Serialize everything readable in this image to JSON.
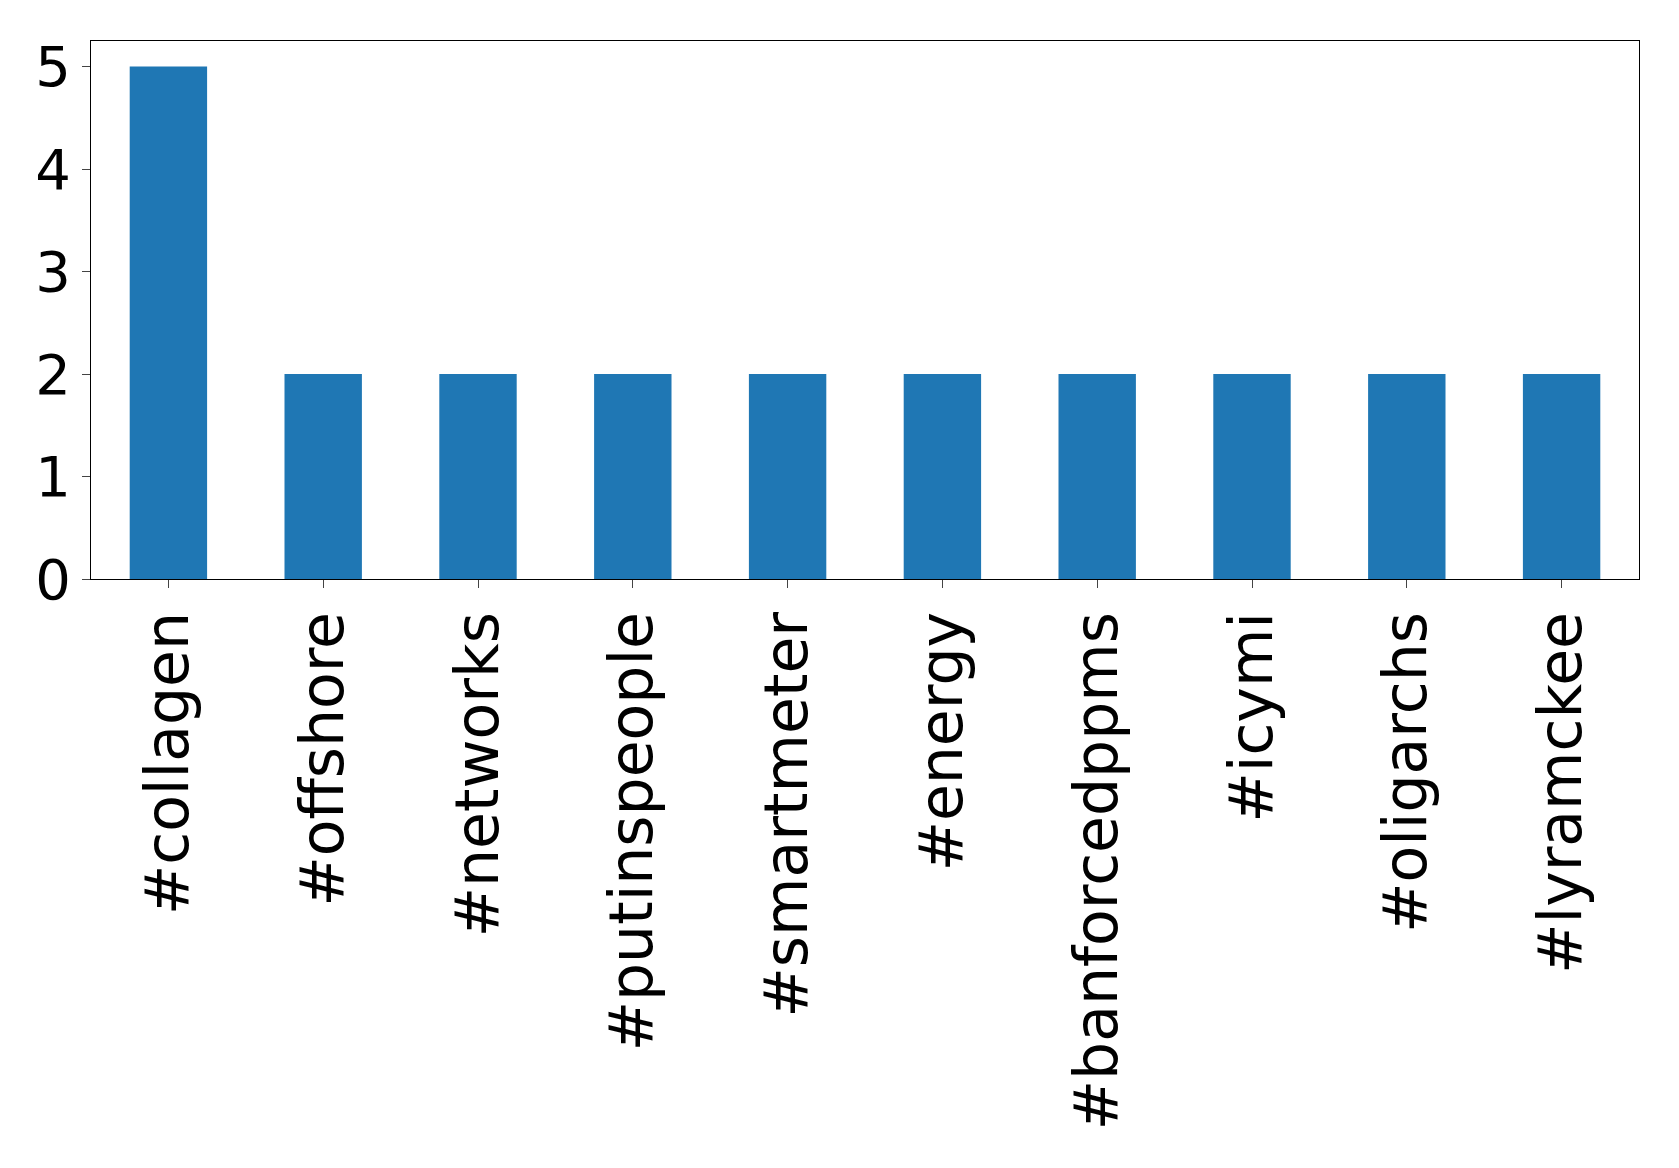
{
  "chart_data": {
    "type": "bar",
    "categories": [
      "#collagen",
      "#offshore",
      "#networks",
      "#putinspeople",
      "#smartmeter",
      "#energy",
      "#banforcedppms",
      "#icymi",
      "#oligarchs",
      "#lyramckee"
    ],
    "values": [
      5,
      2,
      2,
      2,
      2,
      2,
      2,
      2,
      2,
      2
    ],
    "color": "#1f77b4",
    "ylim": [
      0,
      5.25
    ],
    "yticks": [
      0,
      1,
      2,
      3,
      4,
      5
    ]
  }
}
